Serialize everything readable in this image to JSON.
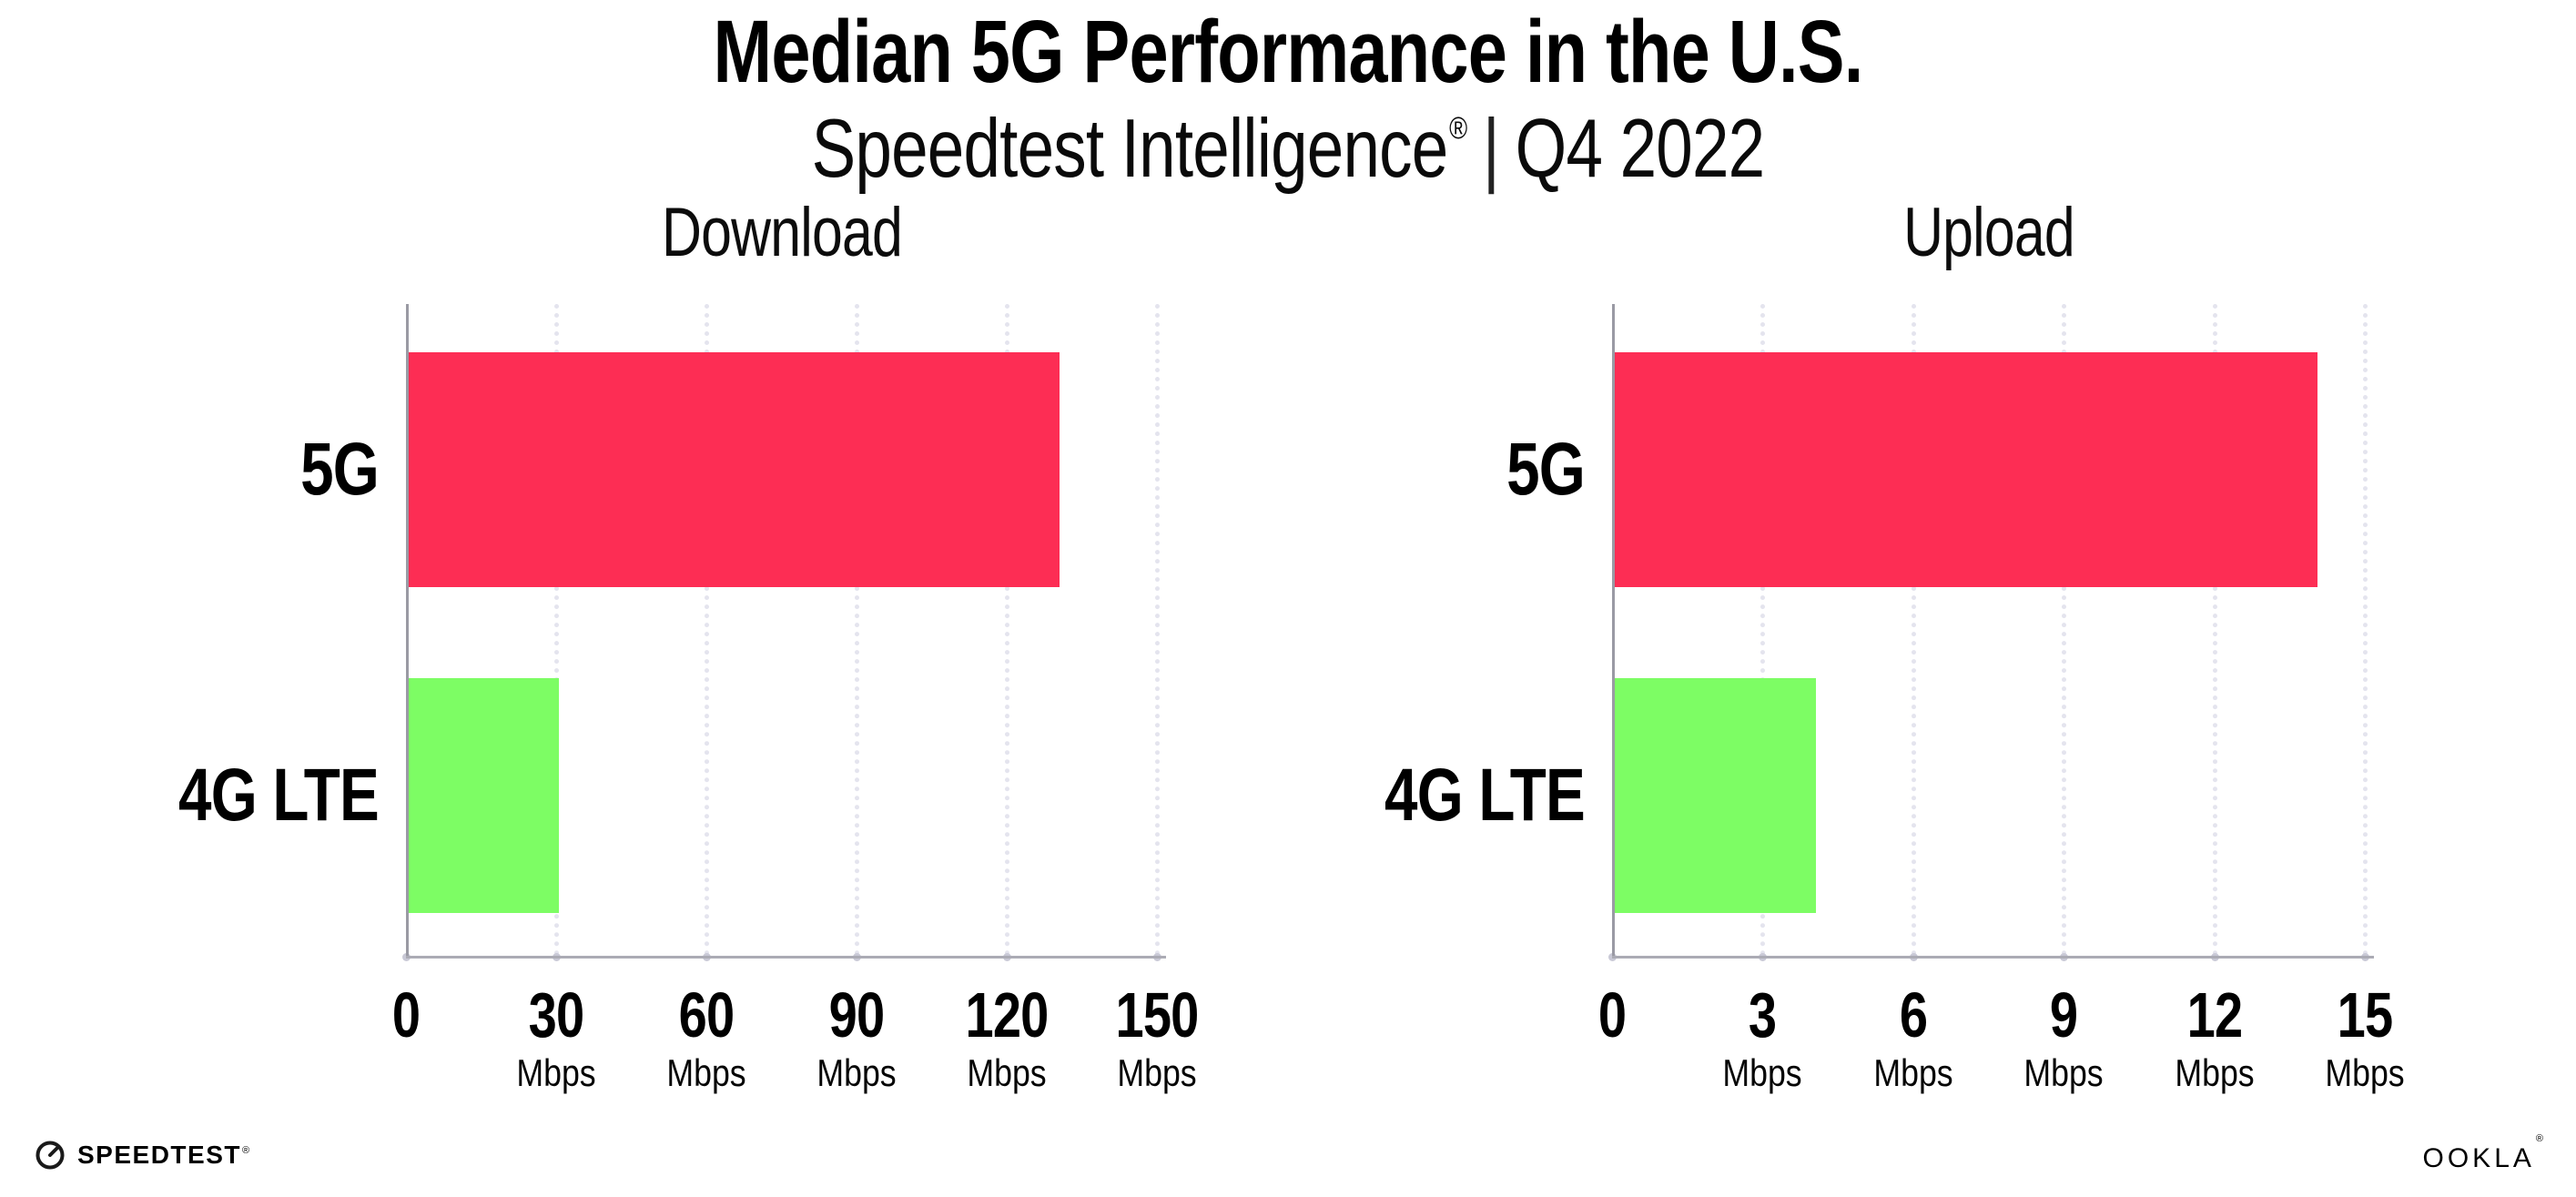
{
  "header": {
    "title": "Median 5G Performance in the U.S.",
    "subtitle_brand": "Speedtest Intelligence",
    "subtitle_trademark": "®",
    "subtitle_separator": "|",
    "subtitle_period": "Q4 2022"
  },
  "footer": {
    "speedtest_label": "SPEEDTEST",
    "speedtest_trademark": "®",
    "speedtest_icon": "gauge-icon",
    "ookla_label": "OOKLA",
    "ookla_trademark": "®"
  },
  "colors": {
    "bar_5g": "#FD2D54",
    "bar_4g_lte": "#7DFD64",
    "axis_line": "#A5A5AF",
    "grid_dot": "#E4E4EE",
    "tick_dot": "#C9C9D6",
    "text": "#000000",
    "background": "#FFFFFF"
  },
  "chart_data": [
    {
      "type": "bar",
      "orientation": "horizontal",
      "title": "Download",
      "categories": [
        "5G",
        "4G LTE"
      ],
      "values": [
        130,
        30
      ],
      "unit": "Mbps",
      "xlabel": "",
      "ylabel": "",
      "xlim": [
        0,
        150
      ],
      "xticks": [
        0,
        30,
        60,
        90,
        120,
        150
      ],
      "grid": "vertical dotted",
      "legend": "none",
      "bar_colors": [
        "#FD2D54",
        "#7DFD64"
      ]
    },
    {
      "type": "bar",
      "orientation": "horizontal",
      "title": "Upload",
      "categories": [
        "5G",
        "4G LTE"
      ],
      "values": [
        14,
        4
      ],
      "unit": "Mbps",
      "xlabel": "",
      "ylabel": "",
      "xlim": [
        0,
        15
      ],
      "xticks": [
        0,
        3,
        6,
        9,
        12,
        15
      ],
      "grid": "vertical dotted",
      "legend": "none",
      "bar_colors": [
        "#FD2D54",
        "#7DFD64"
      ]
    }
  ]
}
